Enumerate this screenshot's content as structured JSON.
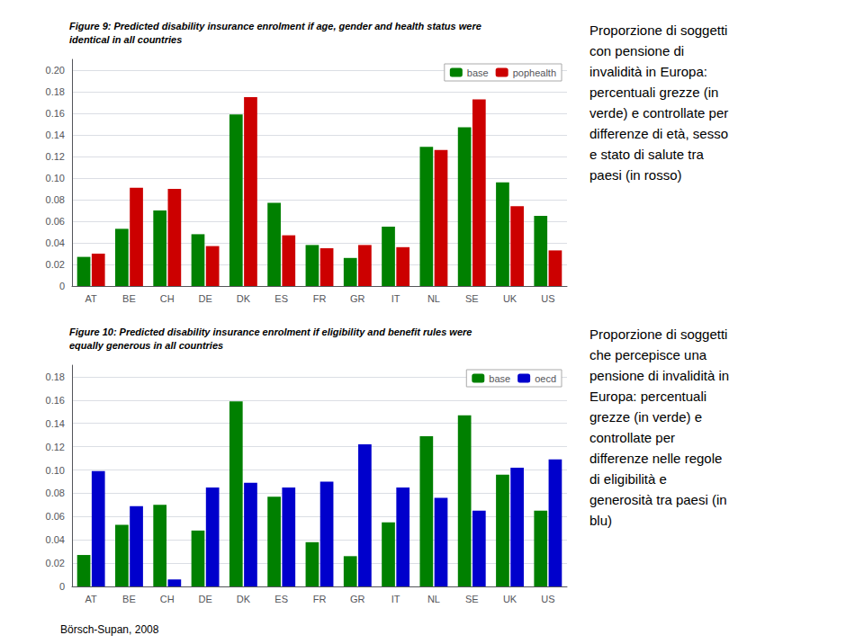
{
  "chart_data": [
    {
      "type": "bar",
      "title": "Figure 9: Predicted disability insurance enrolment if age, gender and health status were\nidentical in all countries",
      "categories": [
        "AT",
        "BE",
        "CH",
        "DE",
        "DK",
        "ES",
        "FR",
        "GR",
        "IT",
        "NL",
        "SE",
        "UK",
        "US"
      ],
      "series": [
        {
          "name": "base",
          "color": "#008000",
          "values": [
            0.027,
            0.053,
            0.07,
            0.048,
            0.159,
            0.077,
            0.038,
            0.026,
            0.055,
            0.129,
            0.147,
            0.096,
            0.065
          ]
        },
        {
          "name": "pophealth",
          "color": "#cc0000",
          "values": [
            0.03,
            0.091,
            0.09,
            0.037,
            0.175,
            0.047,
            0.035,
            0.038,
            0.036,
            0.126,
            0.173,
            0.074,
            0.033
          ]
        }
      ],
      "ylim": [
        0,
        0.21
      ],
      "yticks": [
        0,
        0.02,
        0.04,
        0.06,
        0.08,
        {
          "value": 0.1,
          "label": "0.10"
        },
        0.12,
        0.14,
        0.16,
        0.18,
        {
          "value": 0.2,
          "label": "0.20"
        }
      ],
      "grid": true,
      "legend": "upper right",
      "annotations": [
        "Proporzione di soggetti\ncon pensione di\ninvalidità in Europa:\npercentuali grezze (in\nverde) e controllate per\ndifferenze di età, sesso\ne stato di salute tra\npaesi (in rosso)"
      ]
    },
    {
      "type": "bar",
      "title": "Figure 10: Predicted disability insurance enrolment if eligibility and benefit rules were\nequally generous in all countries",
      "categories": [
        "AT",
        "BE",
        "CH",
        "DE",
        "DK",
        "ES",
        "FR",
        "GR",
        "IT",
        "NL",
        "SE",
        "UK",
        "US"
      ],
      "series": [
        {
          "name": "base",
          "color": "#008000",
          "values": [
            0.027,
            0.053,
            0.07,
            0.048,
            0.159,
            0.077,
            0.038,
            0.026,
            0.055,
            0.129,
            0.147,
            0.096,
            0.065
          ]
        },
        {
          "name": "oecd",
          "color": "#0000cc",
          "values": [
            0.099,
            0.069,
            0.006,
            0.085,
            0.089,
            0.085,
            0.09,
            0.122,
            0.085,
            0.076,
            0.065,
            0.102,
            0.109
          ]
        }
      ],
      "ylim": [
        0,
        0.19
      ],
      "yticks": [
        0,
        0.02,
        0.04,
        0.06,
        0.08,
        {
          "value": 0.1,
          "label": "0.10"
        },
        0.12,
        0.14,
        0.16,
        0.18
      ],
      "grid": true,
      "legend": "upper right",
      "annotations": [
        "Proporzione di soggetti\nche percepisce una\npensione di invalidità in\nEuropa: percentuali\ngrezze (in verde) e\ncontrollate per\ndifferenze nelle regole\ndi eligibilità e\ngenerosità tra paesi (in\nblu)",
        "Börsch-Supan, 2008"
      ]
    }
  ]
}
